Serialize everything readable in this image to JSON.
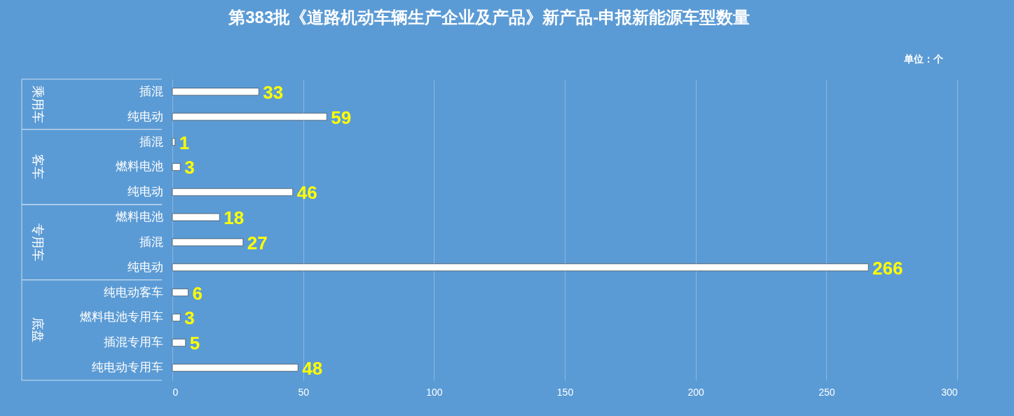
{
  "chart_data": {
    "type": "bar",
    "orientation": "horizontal",
    "title": "第383批《道路机动车辆生产企业及产品》新产品-申报新能源车型数量",
    "categories": [
      "插混",
      "纯电动",
      "插混",
      "燃料电池",
      "纯电动",
      "燃料电池",
      "插混",
      "纯电动",
      "纯电动客车",
      "燃料电池专用车",
      "插混专用车",
      "纯电动专用车"
    ],
    "values": [
      33,
      59,
      1,
      3,
      46,
      18,
      27,
      266,
      6,
      3,
      5,
      48
    ],
    "color": "#ffffff",
    "xlim": [
      0,
      300
    ],
    "xticks": [
      0,
      50,
      100,
      150,
      200,
      250,
      300
    ],
    "grid": "x",
    "data_labels": true,
    "annotations": [
      "单位：个",
      "乘用车",
      "客车",
      "专用车",
      "底盘"
    ]
  }
}
